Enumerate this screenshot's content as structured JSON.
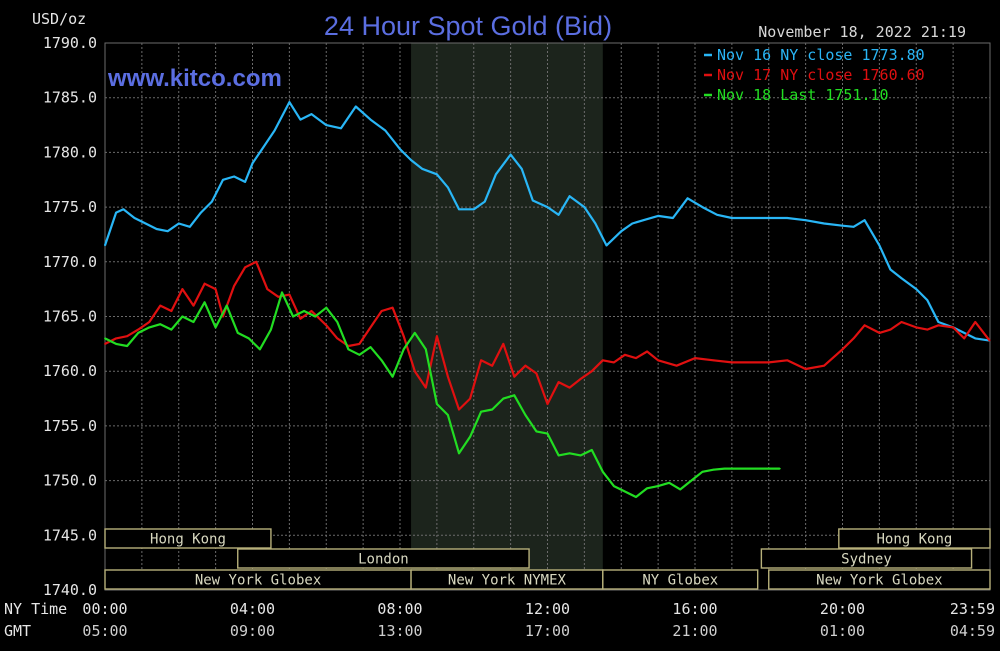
{
  "chart_data": {
    "type": "line",
    "title": "24 Hour Spot Gold (Bid)",
    "watermark": "www.kitco.com",
    "timestamp": "November 18, 2022 21:19",
    "ylabel": "USD/oz",
    "ylim": [
      1740,
      1790
    ],
    "y_ticks": [
      "1790.0",
      "1785.0",
      "1780.0",
      "1775.0",
      "1770.0",
      "1765.0",
      "1760.0",
      "1755.0",
      "1750.0",
      "1745.0",
      "1740.0"
    ],
    "xlim_hours": [
      0,
      24
    ],
    "x_axis_rows": [
      {
        "label": "NY Time",
        "ticks": [
          "00:00",
          "04:00",
          "08:00",
          "12:00",
          "16:00",
          "20:00",
          "23:59"
        ]
      },
      {
        "label": "GMT",
        "ticks": [
          "05:00",
          "09:00",
          "13:00",
          "17:00",
          "21:00",
          "01:00",
          "04:59"
        ]
      }
    ],
    "grid": true,
    "legend_position": "top-right",
    "colors": {
      "grid": "#6b6b6b",
      "axis_text": "#e6e6e6",
      "title": "#5b6ee1",
      "timestamp": "#d8d8d8",
      "market_fill": "#1c241c",
      "market_box_border": "#b7b07a",
      "market_box_text": "#d8d8c0"
    },
    "series": [
      {
        "name": "Nov 16 NY close 1773.80",
        "color": "#29b6f6",
        "x": [
          0,
          0.3,
          0.5,
          0.8,
          1.1,
          1.4,
          1.7,
          2.0,
          2.3,
          2.6,
          2.9,
          3.2,
          3.5,
          3.8,
          4.0,
          4.3,
          4.6,
          5.0,
          5.3,
          5.6,
          6.0,
          6.4,
          6.8,
          7.2,
          7.6,
          8.0,
          8.3,
          8.6,
          9.0,
          9.3,
          9.6,
          10.0,
          10.3,
          10.6,
          11.0,
          11.3,
          11.6,
          12.0,
          12.3,
          12.6,
          13.0,
          13.3,
          13.6,
          14.0,
          14.3,
          14.6,
          15.0,
          15.4,
          15.8,
          16.2,
          16.6,
          17.0,
          17.5,
          18.0,
          18.5,
          19.0,
          19.5,
          20.0,
          20.3,
          20.6,
          21.0,
          21.3,
          21.6,
          22.0,
          22.3,
          22.6,
          23.0,
          23.3,
          23.6,
          23.99
        ],
        "values": [
          1771.5,
          1774.5,
          1774.8,
          1774.0,
          1773.5,
          1773.0,
          1772.8,
          1773.5,
          1773.2,
          1774.5,
          1775.5,
          1777.5,
          1777.8,
          1777.3,
          1779.0,
          1780.5,
          1782.0,
          1784.6,
          1783.0,
          1783.5,
          1782.5,
          1782.2,
          1784.2,
          1783.0,
          1782.0,
          1780.3,
          1779.3,
          1778.5,
          1778.0,
          1776.8,
          1774.8,
          1774.8,
          1775.5,
          1778.0,
          1779.8,
          1778.5,
          1775.6,
          1775.0,
          1774.3,
          1776.0,
          1775.0,
          1773.5,
          1771.5,
          1772.8,
          1773.5,
          1773.8,
          1774.2,
          1774.0,
          1775.8,
          1775.0,
          1774.3,
          1774.0,
          1774.0,
          1774.0,
          1774.0,
          1773.8,
          1773.5,
          1773.3,
          1773.2,
          1773.8,
          1771.5,
          1769.3,
          1768.5,
          1767.5,
          1766.5,
          1764.5,
          1764.0,
          1763.5,
          1763.0,
          1762.8
        ]
      },
      {
        "name": "Nov 17 NY close 1760.60",
        "color": "#e01010",
        "x": [
          0,
          0.3,
          0.6,
          0.9,
          1.2,
          1.5,
          1.8,
          2.1,
          2.4,
          2.7,
          3.0,
          3.2,
          3.5,
          3.8,
          4.1,
          4.4,
          4.7,
          5.0,
          5.3,
          5.6,
          6.0,
          6.3,
          6.6,
          6.9,
          7.2,
          7.5,
          7.8,
          8.1,
          8.4,
          8.7,
          9.0,
          9.3,
          9.6,
          9.9,
          10.2,
          10.5,
          10.8,
          11.1,
          11.4,
          11.7,
          12.0,
          12.3,
          12.6,
          12.9,
          13.2,
          13.5,
          13.8,
          14.1,
          14.4,
          14.7,
          15.0,
          15.5,
          16.0,
          16.5,
          17.0,
          17.5,
          18.0,
          18.5,
          19.0,
          19.5,
          20.0,
          20.3,
          20.6,
          21.0,
          21.3,
          21.6,
          22.0,
          22.3,
          22.6,
          23.0,
          23.3,
          23.6,
          23.99
        ],
        "values": [
          1762.5,
          1763.0,
          1763.2,
          1763.8,
          1764.5,
          1766.0,
          1765.5,
          1767.5,
          1766.0,
          1768.0,
          1767.5,
          1765.0,
          1767.8,
          1769.5,
          1770.0,
          1767.5,
          1766.8,
          1767.0,
          1764.8,
          1765.5,
          1764.2,
          1763.0,
          1762.3,
          1762.5,
          1764.0,
          1765.5,
          1765.8,
          1763.2,
          1760.0,
          1758.5,
          1763.2,
          1759.5,
          1756.5,
          1757.5,
          1761.0,
          1760.5,
          1762.5,
          1759.5,
          1760.5,
          1759.8,
          1757.0,
          1759.0,
          1758.5,
          1759.3,
          1760.0,
          1761.0,
          1760.8,
          1761.5,
          1761.2,
          1761.8,
          1761.0,
          1760.5,
          1761.2,
          1761.0,
          1760.8,
          1760.8,
          1760.8,
          1761.0,
          1760.2,
          1760.5,
          1762.0,
          1763.0,
          1764.2,
          1763.5,
          1763.8,
          1764.5,
          1764.0,
          1763.8,
          1764.2,
          1764.0,
          1763.0,
          1764.5,
          1762.8
        ]
      },
      {
        "name": "Nov 18 Last 1751.10",
        "color": "#22dd22",
        "x": [
          0,
          0.3,
          0.6,
          0.9,
          1.2,
          1.5,
          1.8,
          2.1,
          2.4,
          2.7,
          3.0,
          3.3,
          3.6,
          3.9,
          4.2,
          4.5,
          4.8,
          5.1,
          5.4,
          5.7,
          6.0,
          6.3,
          6.6,
          6.9,
          7.2,
          7.5,
          7.8,
          8.1,
          8.4,
          8.7,
          9.0,
          9.3,
          9.6,
          9.9,
          10.2,
          10.5,
          10.8,
          11.1,
          11.4,
          11.7,
          12.0,
          12.3,
          12.6,
          12.9,
          13.2,
          13.5,
          13.8,
          14.1,
          14.4,
          14.7,
          15.0,
          15.3,
          15.6,
          15.9,
          16.2,
          16.5,
          16.8,
          17.1,
          17.4,
          17.7,
          18.0,
          18.3
        ],
        "values": [
          1763.0,
          1762.5,
          1762.3,
          1763.5,
          1764.0,
          1764.3,
          1763.8,
          1765.0,
          1764.5,
          1766.3,
          1764.0,
          1766.0,
          1763.5,
          1763.0,
          1762.0,
          1763.8,
          1767.2,
          1765.0,
          1765.5,
          1765.0,
          1765.8,
          1764.5,
          1762.0,
          1761.5,
          1762.2,
          1761.0,
          1759.5,
          1762.0,
          1763.5,
          1762.0,
          1757.0,
          1756.0,
          1752.5,
          1754.0,
          1756.3,
          1756.5,
          1757.5,
          1757.8,
          1756.0,
          1754.5,
          1754.3,
          1752.3,
          1752.5,
          1752.3,
          1752.8,
          1750.8,
          1749.5,
          1749.0,
          1748.5,
          1749.3,
          1749.5,
          1749.8,
          1749.2,
          1750.0,
          1750.8,
          1751.0,
          1751.1,
          1751.1,
          1751.1,
          1751.1,
          1751.1,
          1751.1
        ]
      }
    ],
    "market_sessions": [
      {
        "row": 1,
        "label": "Hong Kong",
        "start": -1,
        "end": 4.5
      },
      {
        "row": 1,
        "label": "Hong Kong",
        "start": 19.9,
        "end": 25.0
      },
      {
        "row": 2,
        "label": "London",
        "start": 3.6,
        "end": 11.5
      },
      {
        "row": 2,
        "label": "Sydney",
        "start": 17.8,
        "end": 23.5
      },
      {
        "row": 3,
        "label": "New York Globex",
        "start": -1,
        "end": 8.3
      },
      {
        "row": 3,
        "label": "New York NYMEX",
        "start": 8.3,
        "end": 13.5
      },
      {
        "row": 3,
        "label": "NY Globex",
        "start": 13.5,
        "end": 17.7
      },
      {
        "row": 3,
        "label": "New York Globex",
        "start": 18.0,
        "end": 25.0
      }
    ],
    "highlight_range_hours": [
      8.3,
      13.5
    ]
  }
}
